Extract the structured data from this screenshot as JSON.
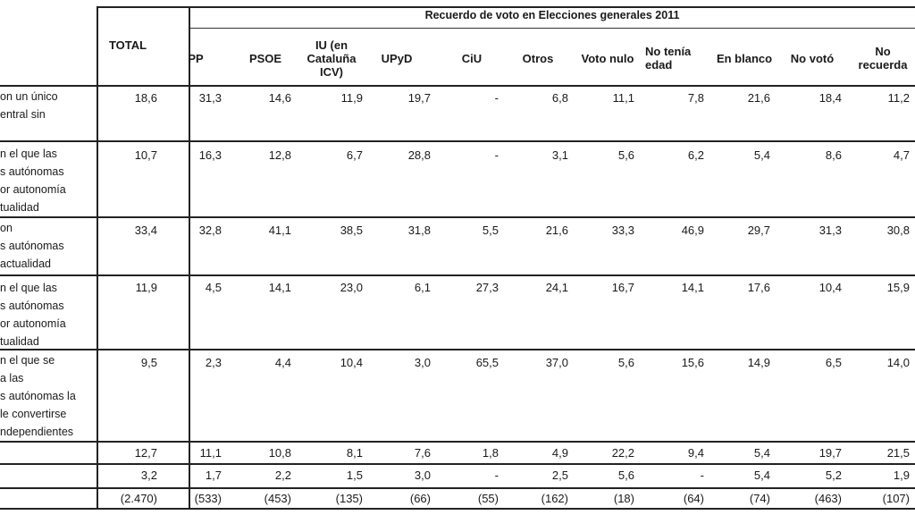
{
  "header": {
    "group_title": "Recuerdo de voto en Elecciones generales 2011",
    "columns": [
      "TOTAL",
      "PP",
      "PSOE",
      "IU (en\nCataluña\nICV)",
      "UPyD",
      "CiU",
      "Otros",
      "Voto nulo",
      "No tenía\nedad",
      "En blanco",
      "No votó",
      "No\nrecuerda"
    ]
  },
  "rows": [
    {
      "label": "on un único\nentral sin",
      "values": [
        "18,6",
        "31,3",
        "14,6",
        "11,9",
        "19,7",
        "-",
        "6,8",
        "11,1",
        "7,8",
        "21,6",
        "18,4",
        "11,2"
      ]
    },
    {
      "label": "n el que las\ns autónomas\nor autonomía\ntualidad",
      "values": [
        "10,7",
        "16,3",
        "12,8",
        "6,7",
        "28,8",
        "-",
        "3,1",
        "5,6",
        "6,2",
        "5,4",
        "8,6",
        "4,7"
      ]
    },
    {
      "label": "on\ns autónomas\nactualidad",
      "values": [
        "33,4",
        "32,8",
        "41,1",
        "38,5",
        "31,8",
        "5,5",
        "21,6",
        "33,3",
        "46,9",
        "29,7",
        "31,3",
        "30,8"
      ]
    },
    {
      "label": "n el que las\ns autónomas\nor autonomía\ntualidad",
      "values": [
        "11,9",
        "4,5",
        "14,1",
        "23,0",
        "6,1",
        "27,3",
        "24,1",
        "16,7",
        "14,1",
        "17,6",
        "10,4",
        "15,9"
      ]
    },
    {
      "label": "n el que se\na las\ns autónomas la\nle convertirse\nndependientes",
      "values": [
        "9,5",
        "2,3",
        "4,4",
        "10,4",
        "3,0",
        "65,5",
        "37,0",
        "5,6",
        "15,6",
        "14,9",
        "6,5",
        "14,0"
      ]
    },
    {
      "label": "",
      "values": [
        "12,7",
        "11,1",
        "10,8",
        "8,1",
        "7,6",
        "1,8",
        "4,9",
        "22,2",
        "9,4",
        "5,4",
        "19,7",
        "21,5"
      ]
    },
    {
      "label": "",
      "values": [
        "3,2",
        "1,7",
        "2,2",
        "1,5",
        "3,0",
        "-",
        "2,5",
        "5,6",
        "-",
        "5,4",
        "5,2",
        "1,9"
      ]
    },
    {
      "label": "",
      "values": [
        "(2.470)",
        "(533)",
        "(453)",
        "(135)",
        "(66)",
        "(55)",
        "(162)",
        "(18)",
        "(64)",
        "(74)",
        "(463)",
        "(107)"
      ]
    }
  ]
}
